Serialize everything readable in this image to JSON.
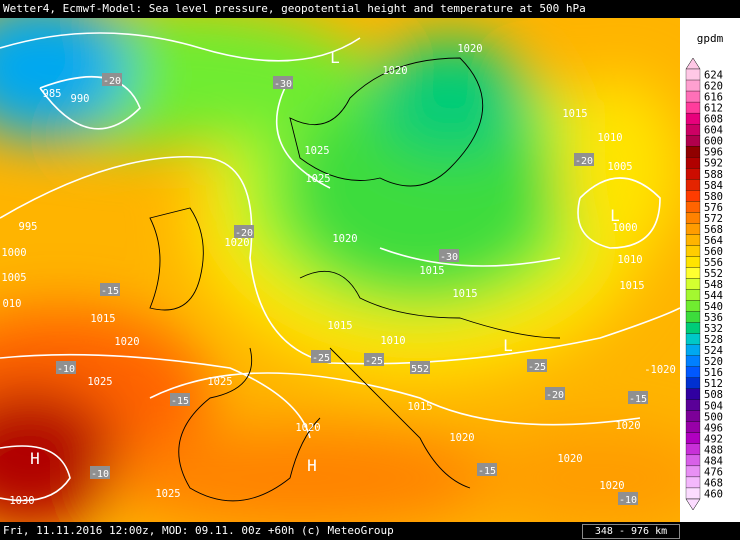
{
  "header": {
    "title": "Wetter4, Ecmwf-Model: Sea level pressure, geopotential height and temperature at 500 hPa"
  },
  "footer": {
    "text": "Fri, 11.11.2016 12:00z, MOD: 09.11. 00z +60h (c) MeteoGroup",
    "scale": "348 - 976 km"
  },
  "legend": {
    "unit": "gpdm",
    "levels": [
      "624",
      "620",
      "616",
      "612",
      "608",
      "604",
      "600",
      "596",
      "592",
      "588",
      "584",
      "580",
      "576",
      "572",
      "568",
      "564",
      "560",
      "556",
      "552",
      "548",
      "544",
      "540",
      "536",
      "532",
      "528",
      "524",
      "520",
      "516",
      "512",
      "508",
      "504",
      "500",
      "496",
      "492",
      "488",
      "484",
      "476",
      "468",
      "460"
    ],
    "colors": [
      "#ffc8e6",
      "#ffa0d0",
      "#ff70b8",
      "#ff3c9c",
      "#e8007c",
      "#cc0064",
      "#b0004c",
      "#900000",
      "#b00000",
      "#cc0c00",
      "#e42400",
      "#ff3c00",
      "#ff6400",
      "#ff8200",
      "#ff9c00",
      "#ffb400",
      "#ffcc00",
      "#ffe400",
      "#ffff30",
      "#d4ff30",
      "#a4f830",
      "#70ec30",
      "#3cdc3c",
      "#00cc78",
      "#00c8c8",
      "#00a8f0",
      "#0080ff",
      "#0058ff",
      "#0030d0",
      "#3000a0",
      "#5a0098",
      "#7c0098",
      "#9800a8",
      "#b000c0",
      "#c830d8",
      "#d860e8",
      "#e890f4",
      "#f4b8fc",
      "#fcdcff"
    ]
  },
  "map_labels": [
    "985",
    "990",
    "-20",
    "-30",
    "L",
    "1020",
    "1020",
    "1025",
    "1025",
    "1015",
    "1010",
    "-20",
    "1005",
    "L",
    "1000",
    "995",
    "1000",
    "1005",
    "010",
    "-20",
    "1020",
    "1020",
    "-30",
    "1015",
    "1010",
    "1015",
    "-15",
    "1015",
    "1015",
    "1015",
    "1020",
    "1010",
    "-25",
    "-25",
    "552",
    "-25",
    "L",
    "-1020",
    "-10",
    "1025",
    "1025",
    "-20",
    "-15",
    "-15",
    "1015",
    "1020",
    "1020",
    "1020",
    "H",
    "H",
    "-10",
    "-15",
    "1020",
    "1020",
    "-10",
    "1025",
    "1030"
  ]
}
